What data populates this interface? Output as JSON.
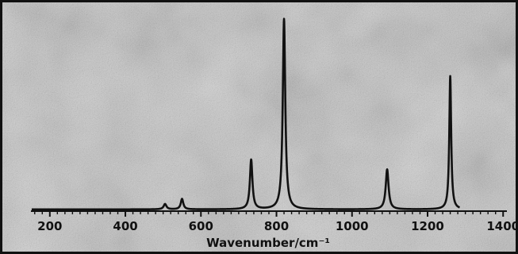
{
  "chart_data": {
    "type": "line",
    "title": "",
    "xlabel": "Wavenumber/cm⁻¹",
    "ylabel": "",
    "xlim": [
      150,
      1410
    ],
    "ylim": [
      0,
      1
    ],
    "xticks": [
      200,
      400,
      600,
      800,
      1000,
      1200,
      1400
    ],
    "grid": false,
    "legend": "none",
    "line_color": "#111111",
    "series": [
      {
        "baseline": 0.005,
        "x_end": 1285,
        "peaks": [
          {
            "center": 505,
            "height": 0.028,
            "width": 9
          },
          {
            "center": 550,
            "height": 0.055,
            "width": 8
          },
          {
            "center": 733,
            "height": 0.26,
            "width": 8
          },
          {
            "center": 820,
            "height": 1.0,
            "width": 8
          },
          {
            "center": 1093,
            "height": 0.21,
            "width": 9
          },
          {
            "center": 1260,
            "height": 0.7,
            "width": 6
          }
        ]
      }
    ]
  }
}
